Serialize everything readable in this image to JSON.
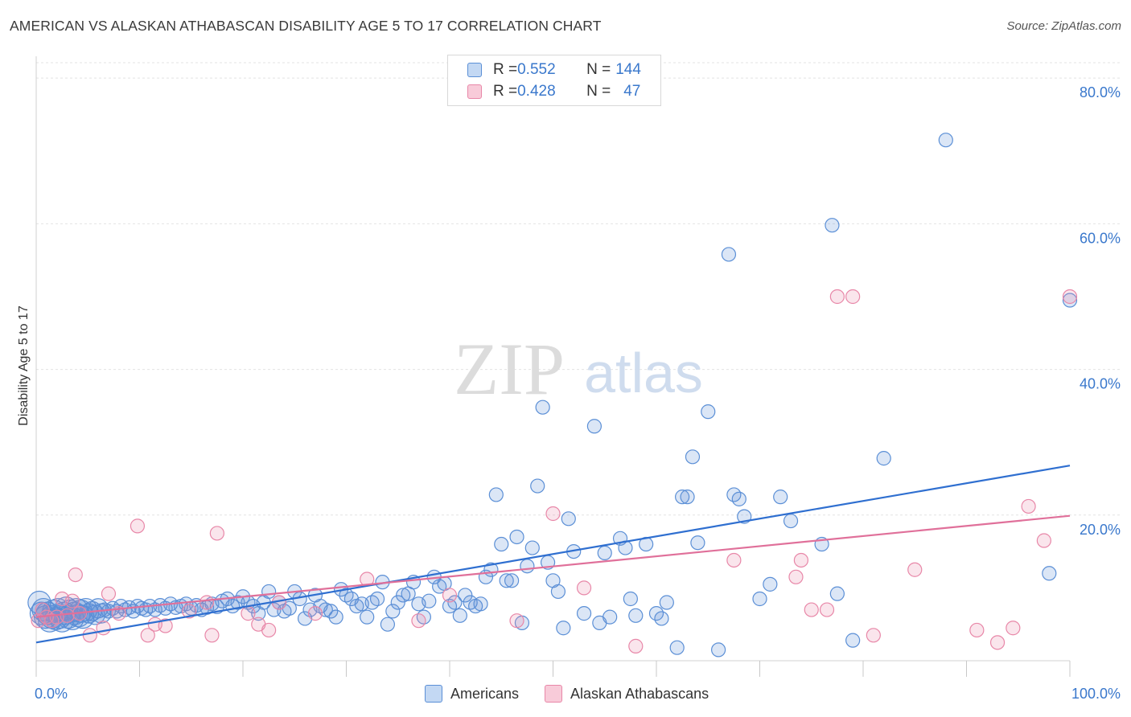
{
  "header": {
    "title": "AMERICAN VS ALASKAN ATHABASCAN DISABILITY AGE 5 TO 17 CORRELATION CHART",
    "source": "Source: ZipAtlas.com"
  },
  "watermark": {
    "zip": "ZIP",
    "atlas": "atlas"
  },
  "legend": {
    "rows": [
      {
        "r_label": "R = ",
        "r_value": "0.552",
        "n_label": "N = ",
        "n_value": "144",
        "color": "#5b8fd6"
      },
      {
        "r_label": "R = ",
        "r_value": "0.428",
        "n_label": "N = ",
        "n_value": "47",
        "color": "#e887a8"
      }
    ]
  },
  "bottom_legend": {
    "americans": "Americans",
    "alaskan": "Alaskan Athabascans"
  },
  "chart_data": {
    "type": "scatter",
    "ylabel": "Disability Age 5 to 17",
    "xlim": [
      0,
      100
    ],
    "ylim": [
      0,
      83
    ],
    "x_tick_labels": [
      "0.0%",
      "100.0%"
    ],
    "y_ticks": [
      20,
      40,
      60,
      80
    ],
    "y_tick_labels": [
      "20.0%",
      "40.0%",
      "60.0%",
      "80.0%"
    ],
    "grid": true,
    "series": [
      {
        "name": "Americans",
        "color": "#5b8fd6",
        "trend": {
          "x": [
            0,
            100
          ],
          "y": [
            2.5,
            26.8
          ]
        },
        "points": [
          [
            0.3,
            8.0
          ],
          [
            0.5,
            6.5
          ],
          [
            0.7,
            7.0
          ],
          [
            0.9,
            6.0
          ],
          [
            1.1,
            6.5
          ],
          [
            1.3,
            5.5
          ],
          [
            1.5,
            6.0
          ],
          [
            1.7,
            6.8
          ],
          [
            1.9,
            5.8
          ],
          [
            2.1,
            7.0
          ],
          [
            2.3,
            6.0
          ],
          [
            2.5,
            5.5
          ],
          [
            2.7,
            6.5
          ],
          [
            2.9,
            7.2
          ],
          [
            3.1,
            6.0
          ],
          [
            3.3,
            6.8
          ],
          [
            3.5,
            5.8
          ],
          [
            3.7,
            6.5
          ],
          [
            3.9,
            7.0
          ],
          [
            4.1,
            6.2
          ],
          [
            4.3,
            6.8
          ],
          [
            4.5,
            6.0
          ],
          [
            4.8,
            7.0
          ],
          [
            5.1,
            6.5
          ],
          [
            5.4,
            6.8
          ],
          [
            5.7,
            6.3
          ],
          [
            6.0,
            7.2
          ],
          [
            6.3,
            6.5
          ],
          [
            6.6,
            7.0
          ],
          [
            7.0,
            6.8
          ],
          [
            7.4,
            7.2
          ],
          [
            7.8,
            6.8
          ],
          [
            8.2,
            7.5
          ],
          [
            8.6,
            7.0
          ],
          [
            9.0,
            7.3
          ],
          [
            9.4,
            6.8
          ],
          [
            9.8,
            7.5
          ],
          [
            10.2,
            7.2
          ],
          [
            10.6,
            7.0
          ],
          [
            11.0,
            7.5
          ],
          [
            11.5,
            7.0
          ],
          [
            12.0,
            7.6
          ],
          [
            12.5,
            7.2
          ],
          [
            13.0,
            7.8
          ],
          [
            13.5,
            7.3
          ],
          [
            14.0,
            7.5
          ],
          [
            14.5,
            7.8
          ],
          [
            15.0,
            7.2
          ],
          [
            15.5,
            7.6
          ],
          [
            16.0,
            7.0
          ],
          [
            16.5,
            7.3
          ],
          [
            17.0,
            7.8
          ],
          [
            17.5,
            7.4
          ],
          [
            18.0,
            8.2
          ],
          [
            18.5,
            8.5
          ],
          [
            19.0,
            7.5
          ],
          [
            19.5,
            8.0
          ],
          [
            20.0,
            8.8
          ],
          [
            20.5,
            8.0
          ],
          [
            21.0,
            7.5
          ],
          [
            21.5,
            6.5
          ],
          [
            22.0,
            8.0
          ],
          [
            22.5,
            9.5
          ],
          [
            23.0,
            7.0
          ],
          [
            23.5,
            8.0
          ],
          [
            24.0,
            6.8
          ],
          [
            24.5,
            7.2
          ],
          [
            25.0,
            9.5
          ],
          [
            25.5,
            8.5
          ],
          [
            26.0,
            5.8
          ],
          [
            26.5,
            7.0
          ],
          [
            27.0,
            9.0
          ],
          [
            27.5,
            7.5
          ],
          [
            28.0,
            7.0
          ],
          [
            28.5,
            6.8
          ],
          [
            29.0,
            6.0
          ],
          [
            29.5,
            9.8
          ],
          [
            30.0,
            9.0
          ],
          [
            30.5,
            8.5
          ],
          [
            31.0,
            7.5
          ],
          [
            31.5,
            7.8
          ],
          [
            32.0,
            6.0
          ],
          [
            32.5,
            8.0
          ],
          [
            33.0,
            8.5
          ],
          [
            33.5,
            10.8
          ],
          [
            34.0,
            5.0
          ],
          [
            34.5,
            6.8
          ],
          [
            35.0,
            8.0
          ],
          [
            35.5,
            9.0
          ],
          [
            36.0,
            9.2
          ],
          [
            36.5,
            10.8
          ],
          [
            37.0,
            7.8
          ],
          [
            37.5,
            6.0
          ],
          [
            38.0,
            8.2
          ],
          [
            38.5,
            11.5
          ],
          [
            39.0,
            10.2
          ],
          [
            39.5,
            10.6
          ],
          [
            40.0,
            7.5
          ],
          [
            40.5,
            8.0
          ],
          [
            41.0,
            6.2
          ],
          [
            41.5,
            9.0
          ],
          [
            42.0,
            8.0
          ],
          [
            42.5,
            7.5
          ],
          [
            43.0,
            7.8
          ],
          [
            43.5,
            11.5
          ],
          [
            44.0,
            12.5
          ],
          [
            44.5,
            22.8
          ],
          [
            45.0,
            16.0
          ],
          [
            45.5,
            11.0
          ],
          [
            46.0,
            11.0
          ],
          [
            46.5,
            17.0
          ],
          [
            47.0,
            5.2
          ],
          [
            47.5,
            13.0
          ],
          [
            48.0,
            15.5
          ],
          [
            48.5,
            24.0
          ],
          [
            49.0,
            34.8
          ],
          [
            49.5,
            13.5
          ],
          [
            50.0,
            11.0
          ],
          [
            50.5,
            9.5
          ],
          [
            51.0,
            4.5
          ],
          [
            51.5,
            19.5
          ],
          [
            52.0,
            15.0
          ],
          [
            53.0,
            6.5
          ],
          [
            54.0,
            32.2
          ],
          [
            54.5,
            5.2
          ],
          [
            55.0,
            14.8
          ],
          [
            55.5,
            6.0
          ],
          [
            56.5,
            16.8
          ],
          [
            57.0,
            15.5
          ],
          [
            57.5,
            8.5
          ],
          [
            58.0,
            6.2
          ],
          [
            59.0,
            16.0
          ],
          [
            60.0,
            6.5
          ],
          [
            60.5,
            5.8
          ],
          [
            61.0,
            8.0
          ],
          [
            62.0,
            1.8
          ],
          [
            62.5,
            22.5
          ],
          [
            63.0,
            22.5
          ],
          [
            63.5,
            28.0
          ],
          [
            64.0,
            16.2
          ],
          [
            65.0,
            34.2
          ],
          [
            66.0,
            1.5
          ],
          [
            67.0,
            55.8
          ],
          [
            67.5,
            22.8
          ],
          [
            68.0,
            22.2
          ],
          [
            68.5,
            19.8
          ],
          [
            70.0,
            8.5
          ],
          [
            71.0,
            10.5
          ],
          [
            72.0,
            22.5
          ],
          [
            73.0,
            19.2
          ],
          [
            76.0,
            16.0
          ],
          [
            77.0,
            59.8
          ],
          [
            77.5,
            9.2
          ],
          [
            79.0,
            2.8
          ],
          [
            82.0,
            27.8
          ],
          [
            88.0,
            71.5
          ],
          [
            98.0,
            12.0
          ],
          [
            100.0,
            49.5
          ]
        ]
      },
      {
        "name": "Alaskan Athabascans",
        "color": "#e887a8",
        "trend": {
          "x": [
            0,
            100
          ],
          "y": [
            6.0,
            19.9
          ]
        },
        "points": [
          [
            0.2,
            5.5
          ],
          [
            0.6,
            7.0
          ],
          [
            1.0,
            6.0
          ],
          [
            1.5,
            5.5
          ],
          [
            2.0,
            6.0
          ],
          [
            2.5,
            8.5
          ],
          [
            3.0,
            6.2
          ],
          [
            3.5,
            8.2
          ],
          [
            3.8,
            11.8
          ],
          [
            4.2,
            6.5
          ],
          [
            5.2,
            3.5
          ],
          [
            6.5,
            4.5
          ],
          [
            7.0,
            9.2
          ],
          [
            8.0,
            6.5
          ],
          [
            9.8,
            18.5
          ],
          [
            10.8,
            3.5
          ],
          [
            11.5,
            5.0
          ],
          [
            12.5,
            4.8
          ],
          [
            14.8,
            6.8
          ],
          [
            16.5,
            8.0
          ],
          [
            17.0,
            3.5
          ],
          [
            17.5,
            17.5
          ],
          [
            20.5,
            6.5
          ],
          [
            21.5,
            5.0
          ],
          [
            22.5,
            4.2
          ],
          [
            23.5,
            8.0
          ],
          [
            27.0,
            6.5
          ],
          [
            32.0,
            11.2
          ],
          [
            37.0,
            5.5
          ],
          [
            40.0,
            9.0
          ],
          [
            46.5,
            5.5
          ],
          [
            50.0,
            20.2
          ],
          [
            53.0,
            10.0
          ],
          [
            58.0,
            2.0
          ],
          [
            67.5,
            13.8
          ],
          [
            73.5,
            11.5
          ],
          [
            74.0,
            13.8
          ],
          [
            75.0,
            7.0
          ],
          [
            76.5,
            7.0
          ],
          [
            77.5,
            50.0
          ],
          [
            79.0,
            50.0
          ],
          [
            81.0,
            3.5
          ],
          [
            85.0,
            12.5
          ],
          [
            91.0,
            4.2
          ],
          [
            93.0,
            2.5
          ],
          [
            94.5,
            4.5
          ],
          [
            96.0,
            21.2
          ],
          [
            97.5,
            16.5
          ],
          [
            100.0,
            50.0
          ]
        ]
      }
    ]
  }
}
